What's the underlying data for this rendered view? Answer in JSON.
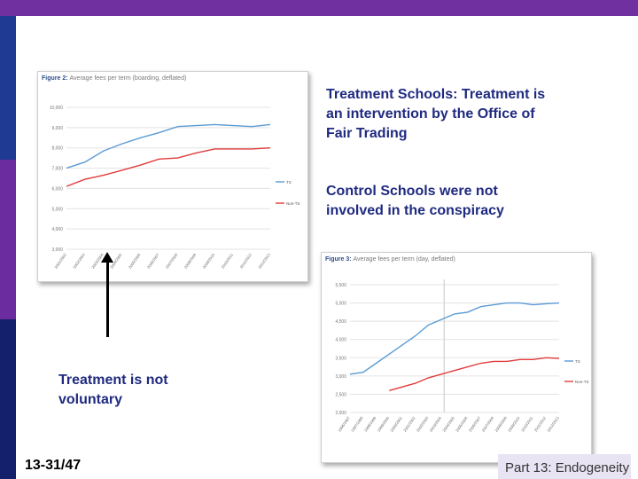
{
  "slide": {
    "treatment_text": "Treatment Schools: Treatment is an intervention by the Office of Fair Trading",
    "control_text": "Control Schools were not involved in the conspiracy",
    "not_voluntary_text": "Treatment  is not voluntary",
    "page_number": "13-31/47",
    "footer_label": "Part 13: Endogeneity"
  },
  "colors": {
    "treatment_line": "#5b9bd5",
    "control_line": "#e23b3b",
    "brand_purple": "#7030a0"
  },
  "chart_data": [
    {
      "type": "line",
      "title": "Figure 2:",
      "title_rest": "Average fees per term (boarding, deflated)",
      "x": [
        "2001/2002",
        "2002/2003",
        "2003/2004",
        "2004/2005",
        "2005/2006",
        "2006/2007",
        "2007/2008",
        "2008/2009",
        "2009/2010",
        "2010/2011",
        "2011/2012",
        "2012/2013"
      ],
      "yticks": [
        "3,000",
        "4,000",
        "5,000",
        "6,000",
        "7,000",
        "8,000",
        "9,000",
        "10,000"
      ],
      "ylim": [
        3000,
        10000
      ],
      "series": [
        {
          "name": "TS",
          "values": [
            7000,
            7300,
            7850,
            8200,
            8500,
            8750,
            9050,
            9100,
            9150,
            9100,
            9050,
            9150
          ]
        },
        {
          "name": "Non-TS",
          "values": [
            6100,
            6450,
            6650,
            6900,
            7150,
            7450,
            7500,
            7750,
            7950,
            7950,
            7950,
            8000
          ]
        }
      ]
    },
    {
      "type": "line",
      "title": "Figure 3:",
      "title_rest": "Average fees per term (day, deflated)",
      "x": [
        "1996/1997",
        "1997/1998",
        "1998/1999",
        "1999/2000",
        "2000/2001",
        "2001/2002",
        "2002/2003",
        "2003/2004",
        "2004/2005",
        "2005/2006",
        "2006/2007",
        "2007/2008",
        "2008/2009",
        "2009/2010",
        "2010/2011",
        "2011/2012",
        "2012/2013"
      ],
      "yticks": [
        "2,000",
        "2,500",
        "3,000",
        "3,500",
        "4,000",
        "4,500",
        "5,000",
        "5,500"
      ],
      "ylim": [
        2000,
        5500
      ],
      "series": [
        {
          "name": "TS",
          "values": [
            3050,
            3100,
            3350,
            3600,
            3850,
            4100,
            4400,
            4550,
            4700,
            4750,
            4900,
            4950,
            5000,
            5000,
            4950,
            4980,
            5000
          ]
        },
        {
          "name": "Non-TS",
          "values": [
            null,
            null,
            null,
            2600,
            2700,
            2800,
            2950,
            3050,
            3150,
            3250,
            3350,
            3400,
            3400,
            3450,
            3450,
            3500,
            3480
          ]
        }
      ]
    }
  ]
}
